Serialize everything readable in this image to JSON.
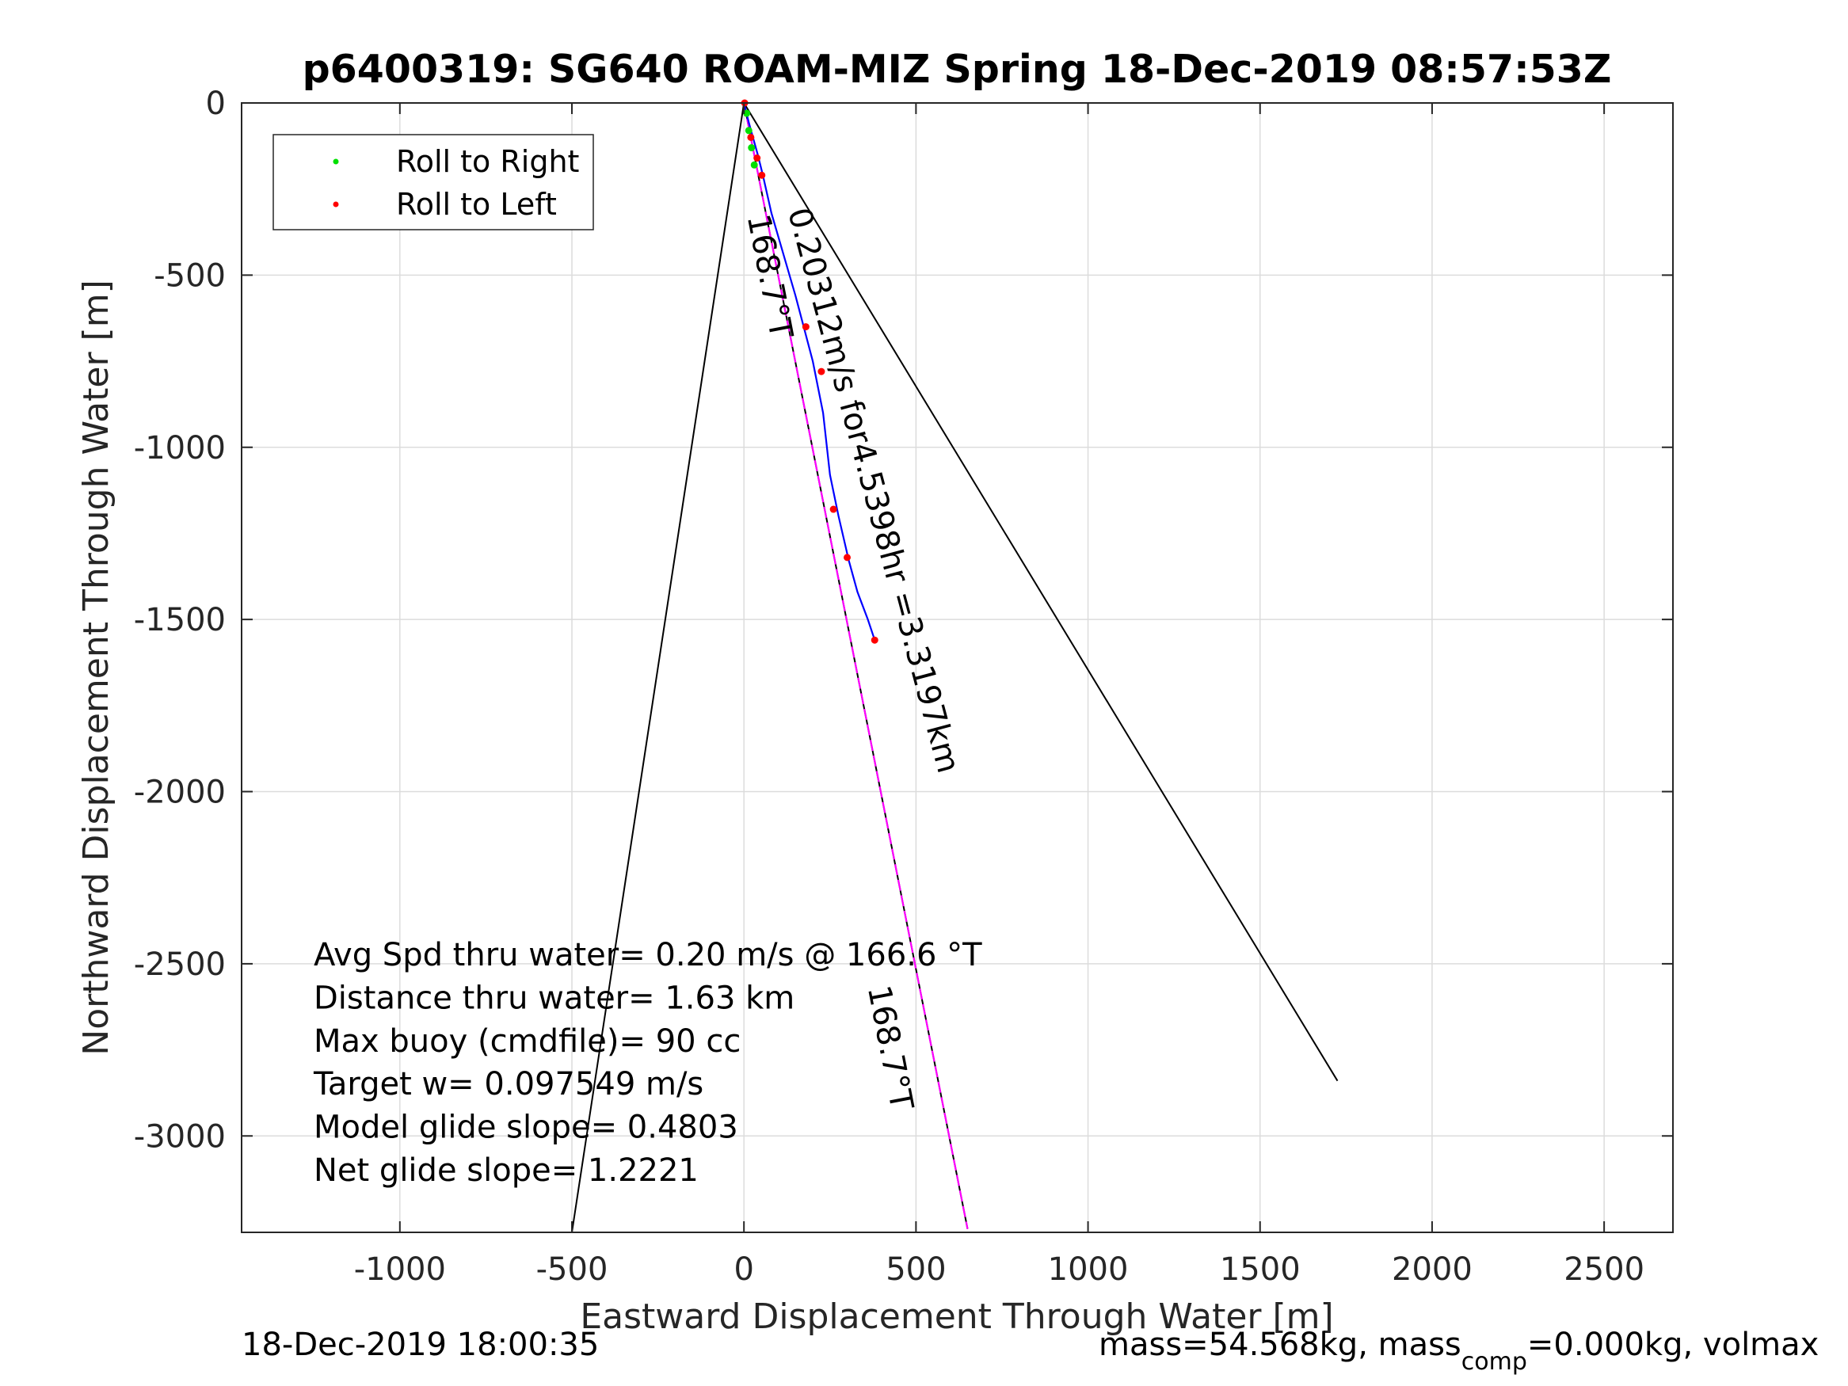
{
  "chart_data": {
    "type": "line",
    "title": "p6400319: SG640 ROAM-MIZ Spring 18-Dec-2019 08:57:53Z",
    "xlabel": "Eastward Displacement Through Water [m]",
    "ylabel": "Northward Displacement Through Water [m]",
    "xlim": [
      -1460,
      2700
    ],
    "ylim": [
      -3280,
      0
    ],
    "grid": true,
    "x_ticks": [
      -1000,
      -500,
      0,
      500,
      1000,
      1500,
      2000,
      2500
    ],
    "x_tick_labels": [
      "-1000",
      "-500",
      "0",
      "500",
      "1000",
      "1500",
      "2000",
      "2500"
    ],
    "y_ticks": [
      0,
      -500,
      -1000,
      -1500,
      -2000,
      -2500,
      -3000
    ],
    "y_tick_labels": [
      "0",
      "-500",
      "-1000",
      "-1500",
      "-2000",
      "-2500",
      "-3000"
    ],
    "legend": {
      "placement": "top-left",
      "entries": [
        {
          "label": "Roll to Right",
          "color": "#00e000"
        },
        {
          "label": "Roll to Left",
          "color": "#ff0000"
        }
      ]
    },
    "series": [
      {
        "style": "black",
        "color": "#000000",
        "x": [
          0,
          -500
        ],
        "y": [
          0,
          -3280
        ]
      },
      {
        "style": "black",
        "color": "#000000",
        "x": [
          0,
          1725
        ],
        "y": [
          0,
          -2840
        ]
      },
      {
        "style": "black",
        "color": "#000000",
        "x": [
          0,
          650
        ],
        "y": [
          0,
          -3270
        ]
      },
      {
        "style": "magenta",
        "color": "#ff00ff",
        "x": [
          0,
          650
        ],
        "y": [
          0,
          -3270
        ]
      },
      {
        "style": "blue",
        "color": "#0000ff",
        "x": [
          0,
          15,
          40,
          55,
          80,
          150,
          200,
          230,
          250,
          275,
          305,
          330,
          360,
          380
        ],
        "y": [
          0,
          -60,
          -150,
          -210,
          -320,
          -560,
          -750,
          -900,
          -1080,
          -1200,
          -1330,
          -1420,
          -1500,
          -1560
        ]
      }
    ],
    "roll_right_points": {
      "x": [
        8,
        14,
        22,
        30
      ],
      "y": [
        -30,
        -80,
        -130,
        -180
      ]
    },
    "roll_left_points": {
      "x": [
        2,
        20,
        38,
        52,
        180,
        225,
        260,
        300,
        380
      ],
      "y": [
        0,
        -100,
        -160,
        -210,
        -650,
        -780,
        -1180,
        -1320,
        -1560
      ]
    },
    "annotations": [
      {
        "text": "168.7°T",
        "x": 10,
        "y": -330,
        "rotation": 79
      },
      {
        "text": "0.20312m/s for4.5398hr =3.3197km",
        "x": 128,
        "y": -315,
        "rotation": 75
      },
      {
        "text": "168.7°T",
        "x": 360,
        "y": -2570,
        "rotation": 79
      }
    ],
    "text_box": [
      "Avg Spd thru water=  0.20 m/s @ 166.6 °T",
      "Distance thru water=  1.63 km",
      "Max buoy (cmdfile)= 90 cc",
      "Target w= 0.097549 m/s",
      "Model glide slope= 0.4803",
      "Net glide slope= 1.2221"
    ],
    "footer_left": "18-Dec-2019 18:00:35",
    "footer_right_parts": [
      "mass=54.568kg, mass",
      "comp",
      "=0.000kg, volmax"
    ]
  }
}
